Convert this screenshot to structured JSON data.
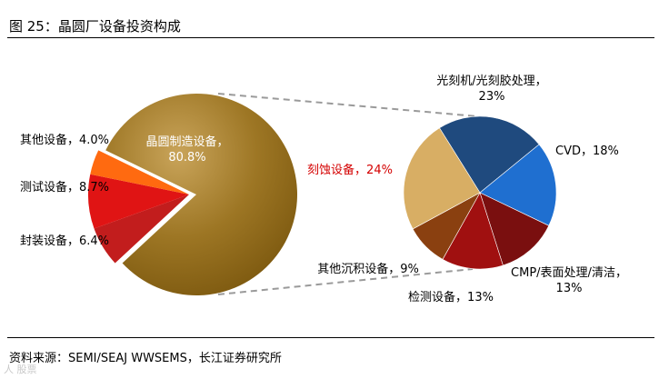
{
  "figure": {
    "title": "图  25：晶圆厂设备投资构成",
    "source": "资料来源：SEMI/SEAJ WWSEMS，长江证券研究所",
    "watermark": "人  股票"
  },
  "chart_data": [
    {
      "type": "pie",
      "title": "",
      "labels": [
        "晶圆制造设备",
        "封装设备",
        "测试设备",
        "其他设备"
      ],
      "values": [
        80.8,
        6.4,
        8.7,
        4.0
      ],
      "value_labels": [
        "80.8%",
        "6.4%",
        "8.7%",
        "4.0%"
      ],
      "colors": [
        "#9a7422",
        "#c21d1d",
        "#e01414",
        "#ff6a10"
      ],
      "exploded_slice": "晶圆制造设备"
    },
    {
      "type": "pie",
      "title": "",
      "labels": [
        "光刻机/光刻胶处理",
        "CVD",
        "CMP/表面处理/清洁",
        "检测设备",
        "其他沉积设备",
        "刻蚀设备"
      ],
      "values": [
        23,
        18,
        13,
        13,
        9,
        24
      ],
      "value_labels": [
        "23%",
        "18%",
        "13%",
        "13%",
        "9%",
        "24%"
      ],
      "colors": [
        "#1f4a7e",
        "#1f6fd0",
        "#7a0f0f",
        "#a01010",
        "#8a4010",
        "#d8ae64"
      ],
      "highlight_label": "刻蚀设备",
      "highlight_color": "#d40000"
    }
  ]
}
